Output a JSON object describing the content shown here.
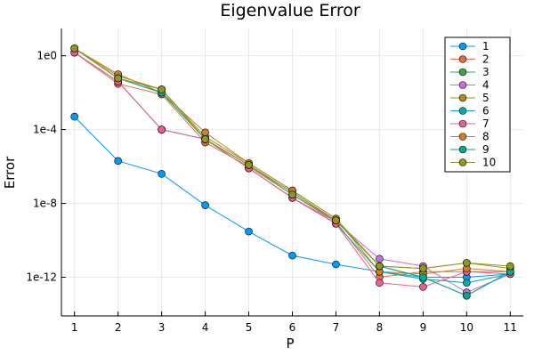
{
  "chart_data": {
    "type": "line",
    "title": "Eigenvalue Error",
    "xlabel": "P",
    "ylabel": "Error",
    "y_scale": "log10",
    "x_ticks": [
      1,
      2,
      3,
      4,
      5,
      6,
      7,
      8,
      9,
      10,
      11
    ],
    "y_ticks": [
      {
        "value": 1,
        "label": "1e0"
      },
      {
        "value": 0.0001,
        "label": "1e-4"
      },
      {
        "value": 1e-08,
        "label": "1e-8"
      },
      {
        "value": 1e-12,
        "label": "1e-12"
      }
    ],
    "xlim": [
      0.7,
      11.3
    ],
    "ylim": [
      8e-15,
      30
    ],
    "grid": true,
    "legend_position": "top-right",
    "x": [
      1,
      2,
      3,
      4,
      5,
      6,
      7,
      8,
      9,
      10,
      11
    ],
    "series": [
      {
        "name": "1",
        "color": "#009AFA",
        "values": [
          0.0005,
          2e-06,
          4e-07,
          8e-09,
          3e-10,
          1.5e-11,
          5e-12,
          2e-12,
          1e-12,
          1e-12,
          1.5e-12
        ]
      },
      {
        "name": "2",
        "color": "#E36F47",
        "values": [
          1.5,
          0.03,
          0.008,
          2e-05,
          1e-06,
          3e-08,
          1e-09,
          1e-12,
          2e-12,
          2e-12,
          2e-12
        ]
      },
      {
        "name": "3",
        "color": "#3EA44E",
        "values": [
          2.5,
          0.06,
          0.01,
          3e-05,
          1.2e-06,
          4e-08,
          1.2e-09,
          4e-12,
          1e-12,
          1e-13,
          2e-12
        ]
      },
      {
        "name": "4",
        "color": "#C371D2",
        "values": [
          1.5,
          0.04,
          0.0001,
          3e-05,
          8e-07,
          2e-08,
          1e-09,
          1e-11,
          4e-12,
          1.5e-13,
          1.5e-12
        ]
      },
      {
        "name": "5",
        "color": "#AC8E18",
        "values": [
          2.5,
          0.08,
          0.015,
          4e-05,
          1.5e-06,
          5e-08,
          1.5e-09,
          4e-12,
          3e-12,
          6e-12,
          3e-12
        ]
      },
      {
        "name": "6",
        "color": "#00AAAE",
        "values": [
          1.5,
          0.04,
          0.0001,
          3e-05,
          8e-07,
          2e-08,
          8e-10,
          2e-12,
          8e-13,
          5e-13,
          1.5e-12
        ]
      },
      {
        "name": "7",
        "color": "#ED5E93",
        "values": [
          1.5,
          0.04,
          0.0001,
          3e-05,
          8e-07,
          2e-08,
          8e-10,
          5e-13,
          3e-13,
          2e-12,
          1.5e-12
        ]
      },
      {
        "name": "8",
        "color": "#C68225",
        "values": [
          2.5,
          0.1,
          0.01,
          7e-05,
          1.5e-06,
          5e-08,
          1.5e-09,
          2e-12,
          1.5e-12,
          3e-12,
          2e-12
        ]
      },
      {
        "name": "9",
        "color": "#00A98D",
        "values": [
          2.5,
          0.06,
          0.01,
          3e-05,
          1.2e-06,
          3e-08,
          1.2e-09,
          4e-12,
          1e-12,
          1e-13,
          2e-12
        ]
      },
      {
        "name": "10",
        "color": "#8E971E",
        "values": [
          2.5,
          0.06,
          0.015,
          3e-05,
          1.2e-06,
          3e-08,
          1.2e-09,
          4e-12,
          3e-12,
          6e-12,
          4e-12
        ]
      }
    ]
  }
}
